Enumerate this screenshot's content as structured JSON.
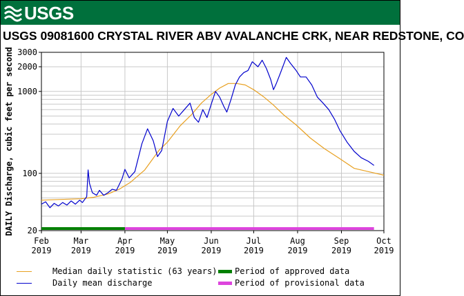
{
  "banner": {
    "logo_text": "USGS",
    "color": "#00703c"
  },
  "title": "USGS 09081600 CRYSTAL RIVER ABV AVALANCHE CRK, NEAR REDSTONE, CO",
  "chart_data": {
    "type": "line",
    "ylabel": "DAILY Discharge, cubic feet per second",
    "yscale": "log",
    "ylim": [
      20,
      3000
    ],
    "y_ticks": [
      20,
      100,
      1000,
      2000,
      3000
    ],
    "x_ticks": [
      {
        "line1": "Feb",
        "line2": "2019",
        "date": "2019-02-01"
      },
      {
        "line1": "Mar",
        "line2": "2019",
        "date": "2019-03-01"
      },
      {
        "line1": "Apr",
        "line2": "2019",
        "date": "2019-04-01"
      },
      {
        "line1": "May",
        "line2": "2019",
        "date": "2019-05-01"
      },
      {
        "line1": "Jun",
        "line2": "2019",
        "date": "2019-06-01"
      },
      {
        "line1": "Jul",
        "line2": "2019",
        "date": "2019-07-01"
      },
      {
        "line1": "Aug",
        "line2": "2019",
        "date": "2019-08-01"
      },
      {
        "line1": "Sep",
        "line2": "2019",
        "date": "2019-09-01"
      },
      {
        "line1": "Oct",
        "line2": "2019",
        "date": "2019-10-01"
      }
    ],
    "xlim": [
      "2019-02-01",
      "2019-10-01"
    ],
    "grid": true,
    "series": [
      {
        "name": "Median daily statistic (63 years)",
        "color": "#e8a020",
        "points": [
          [
            "2019-02-01",
            47
          ],
          [
            "2019-02-15",
            48
          ],
          [
            "2019-03-01",
            49
          ],
          [
            "2019-03-10",
            51
          ],
          [
            "2019-03-20",
            56
          ],
          [
            "2019-03-28",
            64
          ],
          [
            "2019-04-05",
            78
          ],
          [
            "2019-04-15",
            110
          ],
          [
            "2019-04-25",
            190
          ],
          [
            "2019-05-01",
            240
          ],
          [
            "2019-05-10",
            380
          ],
          [
            "2019-05-18",
            520
          ],
          [
            "2019-05-25",
            720
          ],
          [
            "2019-06-01",
            920
          ],
          [
            "2019-06-07",
            1100
          ],
          [
            "2019-06-13",
            1250
          ],
          [
            "2019-06-19",
            1250
          ],
          [
            "2019-06-25",
            1200
          ],
          [
            "2019-07-01",
            1050
          ],
          [
            "2019-07-08",
            860
          ],
          [
            "2019-07-15",
            680
          ],
          [
            "2019-07-22",
            520
          ],
          [
            "2019-07-31",
            390
          ],
          [
            "2019-08-10",
            270
          ],
          [
            "2019-08-20",
            200
          ],
          [
            "2019-08-31",
            150
          ],
          [
            "2019-09-10",
            115
          ],
          [
            "2019-09-20",
            105
          ],
          [
            "2019-10-01",
            95
          ]
        ]
      },
      {
        "name": "Daily mean discharge",
        "color": "#0000cc",
        "points": [
          [
            "2019-02-01",
            42
          ],
          [
            "2019-02-04",
            45
          ],
          [
            "2019-02-07",
            38
          ],
          [
            "2019-02-10",
            43
          ],
          [
            "2019-02-13",
            40
          ],
          [
            "2019-02-16",
            44
          ],
          [
            "2019-02-19",
            41
          ],
          [
            "2019-02-22",
            46
          ],
          [
            "2019-02-25",
            42
          ],
          [
            "2019-02-28",
            47
          ],
          [
            "2019-03-02",
            44
          ],
          [
            "2019-03-05",
            52
          ],
          [
            "2019-03-06",
            110
          ],
          [
            "2019-03-07",
            75
          ],
          [
            "2019-03-09",
            58
          ],
          [
            "2019-03-12",
            54
          ],
          [
            "2019-03-14",
            62
          ],
          [
            "2019-03-17",
            54
          ],
          [
            "2019-03-20",
            58
          ],
          [
            "2019-03-23",
            64
          ],
          [
            "2019-03-26",
            62
          ],
          [
            "2019-03-30",
            86
          ],
          [
            "2019-04-01",
            112
          ],
          [
            "2019-04-04",
            88
          ],
          [
            "2019-04-08",
            105
          ],
          [
            "2019-04-13",
            230
          ],
          [
            "2019-04-17",
            350
          ],
          [
            "2019-04-21",
            250
          ],
          [
            "2019-04-24",
            160
          ],
          [
            "2019-04-27",
            190
          ],
          [
            "2019-05-01",
            430
          ],
          [
            "2019-05-05",
            620
          ],
          [
            "2019-05-09",
            500
          ],
          [
            "2019-05-13",
            600
          ],
          [
            "2019-05-17",
            720
          ],
          [
            "2019-05-20",
            480
          ],
          [
            "2019-05-23",
            420
          ],
          [
            "2019-05-26",
            600
          ],
          [
            "2019-05-29",
            480
          ],
          [
            "2019-06-01",
            700
          ],
          [
            "2019-06-04",
            1000
          ],
          [
            "2019-06-07",
            850
          ],
          [
            "2019-06-10",
            650
          ],
          [
            "2019-06-12",
            560
          ],
          [
            "2019-06-15",
            800
          ],
          [
            "2019-06-18",
            1200
          ],
          [
            "2019-06-21",
            1500
          ],
          [
            "2019-06-24",
            1700
          ],
          [
            "2019-06-27",
            1800
          ],
          [
            "2019-06-30",
            2300
          ],
          [
            "2019-07-04",
            2000
          ],
          [
            "2019-07-07",
            2400
          ],
          [
            "2019-07-10",
            1900
          ],
          [
            "2019-07-13",
            1400
          ],
          [
            "2019-07-15",
            1050
          ],
          [
            "2019-07-17",
            1250
          ],
          [
            "2019-07-20",
            1700
          ],
          [
            "2019-07-24",
            2600
          ],
          [
            "2019-07-27",
            2200
          ],
          [
            "2019-07-31",
            1800
          ],
          [
            "2019-08-03",
            1500
          ],
          [
            "2019-08-07",
            1500
          ],
          [
            "2019-08-11",
            1200
          ],
          [
            "2019-08-15",
            850
          ],
          [
            "2019-08-19",
            720
          ],
          [
            "2019-08-23",
            600
          ],
          [
            "2019-08-27",
            460
          ],
          [
            "2019-08-31",
            330
          ],
          [
            "2019-09-05",
            240
          ],
          [
            "2019-09-10",
            185
          ],
          [
            "2019-09-15",
            155
          ],
          [
            "2019-09-20",
            140
          ],
          [
            "2019-09-24",
            125
          ]
        ]
      }
    ],
    "periods": [
      {
        "name": "Period of approved data",
        "color": "#008000",
        "start": "2019-02-01",
        "end": "2019-04-01"
      },
      {
        "name": "Period of provisional data",
        "color": "#dd44dd",
        "start": "2019-04-01",
        "end": "2019-09-24"
      }
    ]
  }
}
